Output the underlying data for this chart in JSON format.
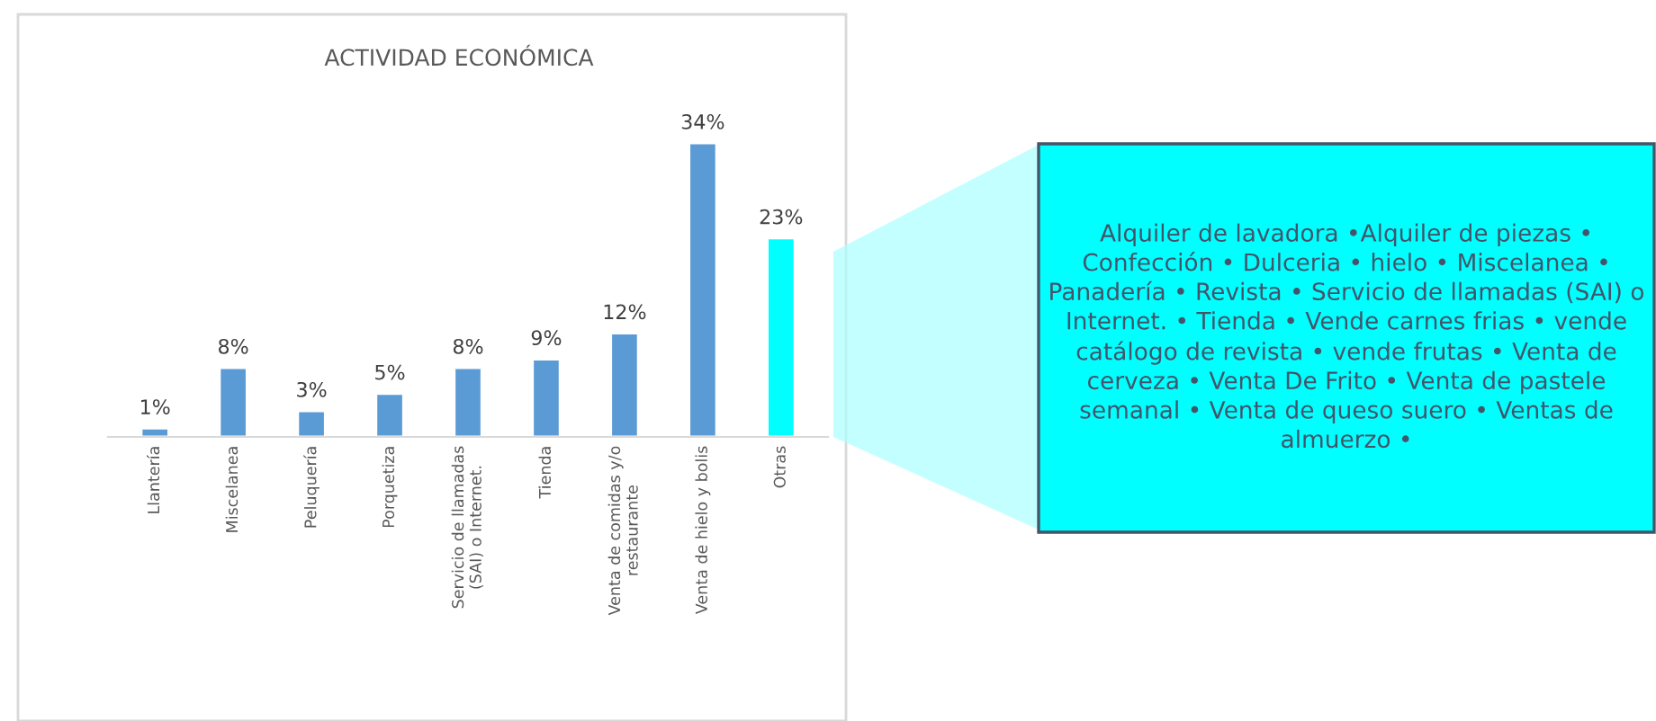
{
  "chart_data": {
    "type": "bar",
    "title": "ACTIVIDAD ECONÓMICA",
    "categories": [
      "Llantería",
      "Miscelanea",
      "Peluquería",
      "Porquetiza",
      "Servicio de llamadas (SAI) o Internet.",
      "Tienda",
      "Venta de comidas y/o restaurante",
      "Venta de hielo y bolis",
      "Otras"
    ],
    "values": [
      1,
      8,
      3,
      5,
      8,
      9,
      12,
      34,
      23
    ],
    "colors": [
      "#5b9bd5",
      "#5b9bd5",
      "#5b9bd5",
      "#5b9bd5",
      "#5b9bd5",
      "#5b9bd5",
      "#5b9bd5",
      "#5b9bd5",
      "#00ffff"
    ],
    "value_labels": [
      "1%",
      "8%",
      "3%",
      "5%",
      "8%",
      "9%",
      "12%",
      "34%",
      "23%"
    ],
    "annotations": [
      "Alquiler de lavadora •Alquiler de piezas • Confección • Dulceria • hielo • Miscelanea • Panadería • Revista • Servicio de llamadas (SAI) o Internet. • Tienda • Vende carnes frias • vende catálogo de revista • vende frutas • Venta de cerveza • Venta De Frito • Venta de pastele semanal • Venta de queso suero • Ventas de almuerzo •"
    ]
  }
}
